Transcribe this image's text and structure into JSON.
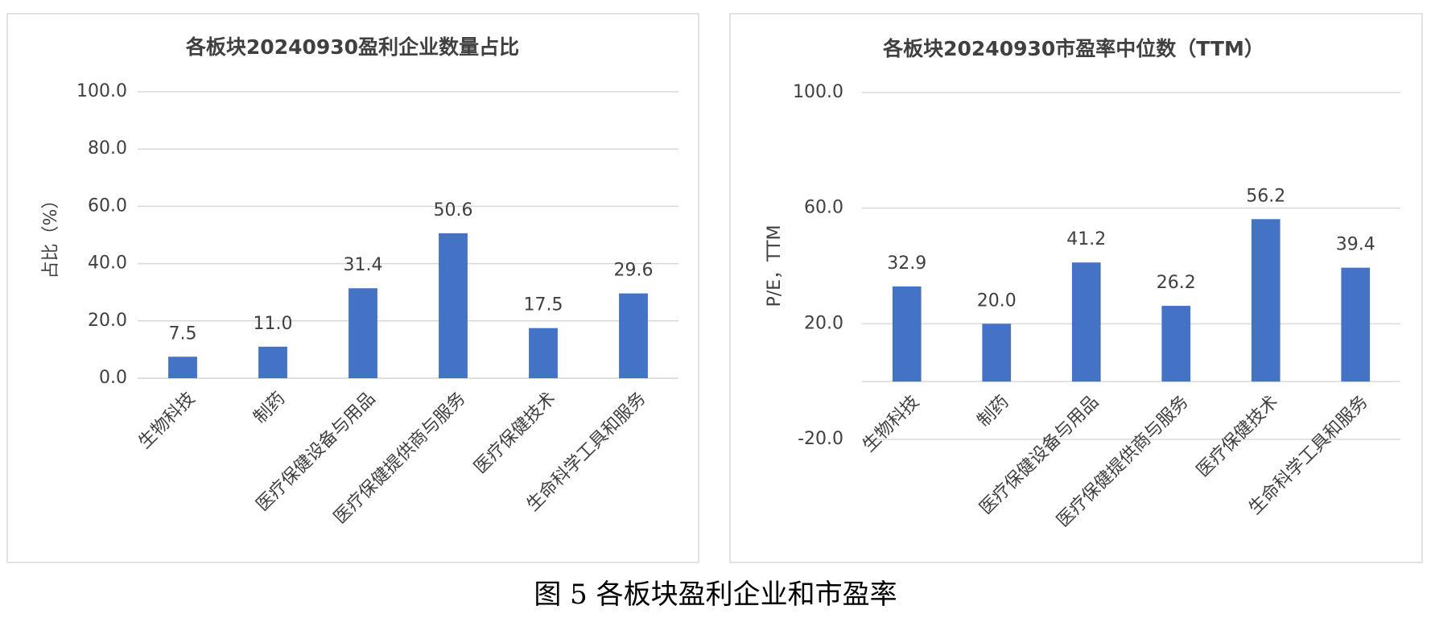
{
  "chart_data": [
    {
      "type": "bar",
      "title": "各板块20240930盈利企业数量占比",
      "y_label": "占比（%）",
      "categories": [
        "生物科技",
        "制药",
        "医疗保健设备与用品",
        "医疗保健提供商与服务",
        "医疗保健技术",
        "生命科学工具和服务"
      ],
      "values": [
        7.5,
        11.0,
        31.4,
        50.6,
        17.5,
        29.6
      ],
      "value_labels": [
        "7.5",
        "11.0",
        "31.4",
        "50.6",
        "17.5",
        "29.6"
      ],
      "color": "#4472c4",
      "ylim": [
        0,
        100
      ],
      "yticks": [
        {
          "value": 0,
          "label": "0.0"
        },
        {
          "value": 20,
          "label": "20.0"
        },
        {
          "value": 40,
          "label": "40.0"
        },
        {
          "value": 60,
          "label": "60.0"
        },
        {
          "value": 80,
          "label": "80.0"
        },
        {
          "value": 100,
          "label": "100.0"
        }
      ],
      "grid": true
    },
    {
      "type": "bar",
      "title": "各板块20240930市盈率中位数（TTM）",
      "y_label": "P/E，TTM",
      "categories": [
        "生物科技",
        "制药",
        "医疗保健设备与用品",
        "医疗保健提供商与服务",
        "医疗保健技术",
        "生命科学工具和服务"
      ],
      "values": [
        32.9,
        20.0,
        41.2,
        26.2,
        56.2,
        39.4
      ],
      "value_labels": [
        "32.9",
        "20.0",
        "41.2",
        "26.2",
        "56.2",
        "39.4"
      ],
      "color": "#4472c4",
      "ylim": [
        -20,
        100
      ],
      "yticks": [
        {
          "value": -20,
          "label": "-20.0"
        },
        {
          "value": 20,
          "label": "20.0"
        },
        {
          "value": 60,
          "label": "60.0"
        },
        {
          "value": 100,
          "label": "100.0"
        }
      ],
      "grid": true
    }
  ],
  "caption": "图 5  各板块盈利企业和市盈率"
}
